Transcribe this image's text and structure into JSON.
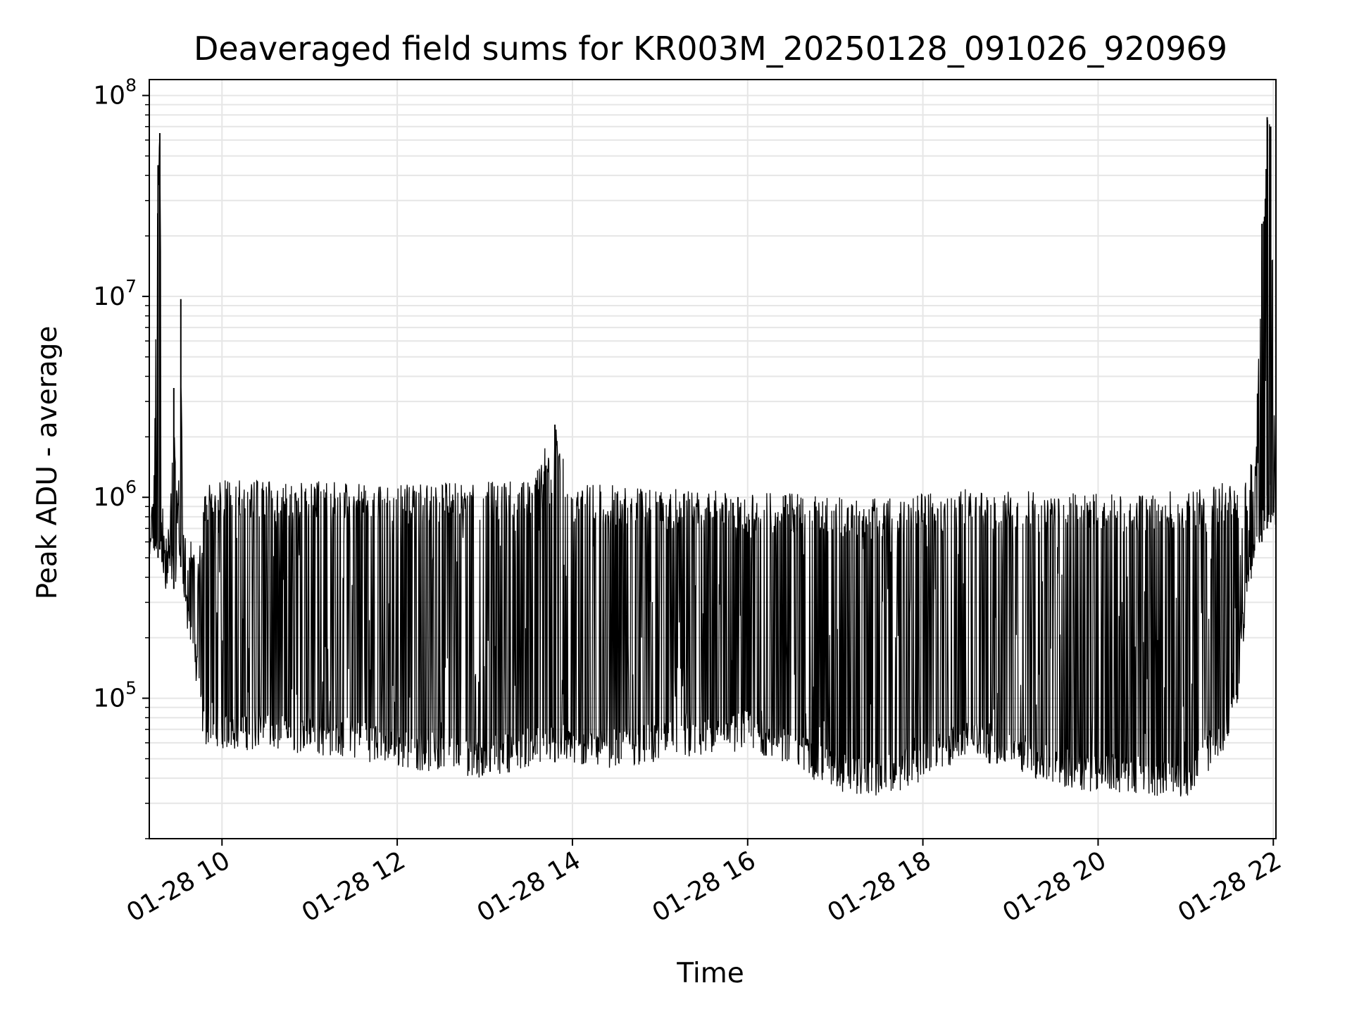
{
  "chart_data": {
    "type": "line",
    "title": "Deaveraged field sums for KR003M_20250128_091026_920969",
    "xlabel": "Time",
    "ylabel": "Peak ADU - average",
    "y_scale": "log",
    "ylim": [
      20000,
      120000000
    ],
    "xlim": [
      "01-28 09:10",
      "01-28 22:02"
    ],
    "grid": true,
    "x_ticks": [
      "01-28 10",
      "01-28 12",
      "01-28 14",
      "01-28 16",
      "01-28 18",
      "01-28 20",
      "01-28 22"
    ],
    "y_ticks": [
      {
        "base": "10",
        "exp": "5",
        "value": 100000
      },
      {
        "base": "10",
        "exp": "6",
        "value": 1000000
      },
      {
        "base": "10",
        "exp": "7",
        "value": 10000000
      },
      {
        "base": "10",
        "exp": "8",
        "value": 100000000
      }
    ],
    "series": [
      {
        "color": "#000000",
        "x_hours": [
          9.17,
          9.22,
          9.27,
          9.29,
          9.32,
          9.36,
          9.4,
          9.45,
          9.5,
          9.53,
          9.55,
          9.6,
          9.65,
          9.7,
          9.75,
          9.8,
          9.85,
          9.9,
          10.0,
          10.5,
          11.0,
          11.5,
          12.0,
          12.5,
          13.0,
          13.5,
          13.8,
          14.0,
          14.5,
          15.0,
          15.5,
          16.0,
          16.5,
          17.0,
          17.5,
          18.0,
          18.5,
          19.0,
          19.5,
          20.0,
          20.5,
          21.0,
          21.3,
          21.5,
          21.6,
          21.7,
          21.8,
          21.87,
          21.93,
          21.97,
          22.02
        ],
        "upper": [
          800000,
          1100000,
          45000000,
          65000000,
          900000,
          700000,
          900000,
          3500000,
          900000,
          9700000,
          800000,
          700000,
          600000,
          550000,
          600000,
          1100000,
          1200000,
          1300000,
          1250000,
          1200000,
          1200000,
          1200000,
          1150000,
          1180000,
          1200000,
          1200000,
          2300000,
          1180000,
          1150000,
          1100000,
          1100000,
          1050000,
          1050000,
          1000000,
          1000000,
          1050000,
          1100000,
          1100000,
          1050000,
          1050000,
          1050000,
          1100000,
          1150000,
          1200000,
          1250000,
          1300000,
          1900000,
          23000000,
          78000000,
          70000000,
          1700000
        ],
        "lower": [
          380000,
          450000,
          500000,
          550000,
          450000,
          270000,
          350000,
          350000,
          420000,
          450000,
          400000,
          200000,
          180000,
          120000,
          80000,
          55000,
          60000,
          60000,
          55000,
          55000,
          52000,
          50000,
          45000,
          42000,
          40000,
          45000,
          48000,
          45000,
          45000,
          48000,
          50000,
          55000,
          45000,
          34000,
          32000,
          38000,
          50000,
          45000,
          36000,
          34000,
          33000,
          32000,
          45000,
          60000,
          100000,
          300000,
          500000,
          600000,
          700000,
          750000,
          650000
        ]
      }
    ]
  }
}
